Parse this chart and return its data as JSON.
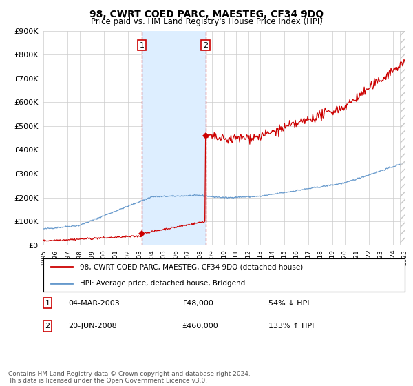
{
  "title": "98, CWRT COED PARC, MAESTEG, CF34 9DQ",
  "subtitle": "Price paid vs. HM Land Registry's House Price Index (HPI)",
  "x_start_year": 1995,
  "x_end_year": 2025,
  "ylim": [
    0,
    900000
  ],
  "yticks": [
    0,
    100000,
    200000,
    300000,
    400000,
    500000,
    600000,
    700000,
    800000,
    900000
  ],
  "ytick_labels": [
    "£0",
    "£100K",
    "£200K",
    "£300K",
    "£400K",
    "£500K",
    "£600K",
    "£700K",
    "£800K",
    "£900K"
  ],
  "red_line_color": "#cc0000",
  "blue_line_color": "#6699cc",
  "sale1_date": 2003.17,
  "sale1_price": 48000,
  "sale1_label": "1",
  "sale1_text": "04-MAR-2003",
  "sale1_amount": "£48,000",
  "sale1_note": "54% ↓ HPI",
  "sale2_date": 2008.47,
  "sale2_price": 460000,
  "sale2_label": "2",
  "sale2_text": "20-JUN-2008",
  "sale2_amount": "£460,000",
  "sale2_note": "133% ↑ HPI",
  "legend_line1": "98, CWRT COED PARC, MAESTEG, CF34 9DQ (detached house)",
  "legend_line2": "HPI: Average price, detached house, Bridgend",
  "footer": "Contains HM Land Registry data © Crown copyright and database right 2024.\nThis data is licensed under the Open Government Licence v3.0.",
  "bg_color": "#ffffff",
  "plot_bg_color": "#ffffff",
  "grid_color": "#cccccc",
  "shade_color": "#ddeeff"
}
